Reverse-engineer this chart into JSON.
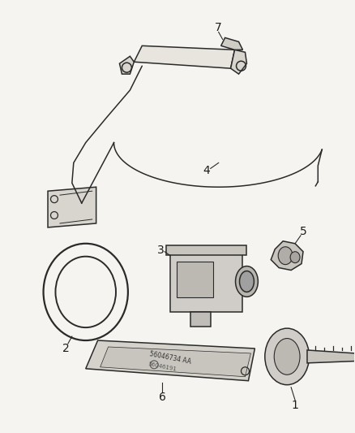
{
  "bg_color": "#f5f4f0",
  "line_color": "#2a2a2a",
  "label_color": "#1a1a1a",
  "figsize": [
    4.38,
    5.33
  ],
  "dpi": 100,
  "lw": 1.1
}
